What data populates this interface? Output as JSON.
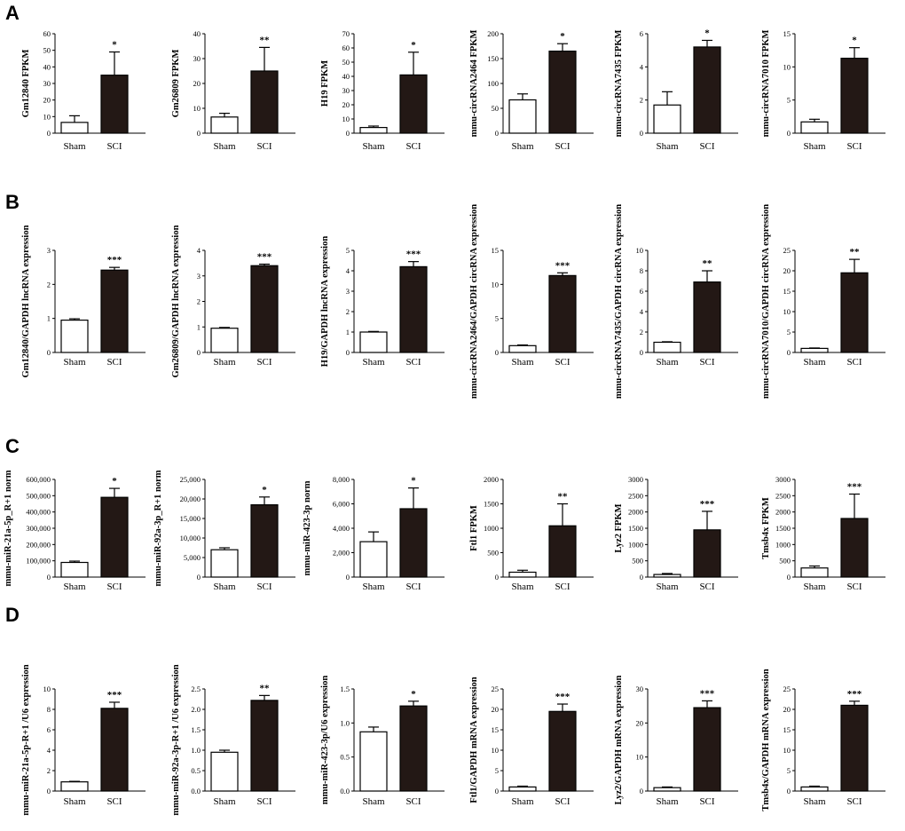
{
  "panels": [
    {
      "letter": "A",
      "charts": [
        {
          "type": "bar",
          "ylabel": "Gm12840 FPKM",
          "categories": [
            "Sham",
            "SCI"
          ],
          "values": [
            6.5,
            35
          ],
          "errors": [
            4,
            14
          ],
          "ylim": [
            0,
            60
          ],
          "yticks": [
            "0",
            "10",
            "20",
            "30",
            "40",
            "50",
            "60"
          ],
          "significance": "*"
        },
        {
          "type": "bar",
          "ylabel": "Gm26809 FPKM",
          "categories": [
            "Sham",
            "SCI"
          ],
          "values": [
            6.5,
            25
          ],
          "errors": [
            1.5,
            9.5
          ],
          "ylim": [
            0,
            40
          ],
          "yticks": [
            "0",
            "10",
            "20",
            "30",
            "40"
          ],
          "significance": "**"
        },
        {
          "type": "bar",
          "ylabel": "H19 FPKM",
          "categories": [
            "Sham",
            "SCI"
          ],
          "values": [
            4,
            41
          ],
          "errors": [
            1,
            16
          ],
          "ylim": [
            0,
            70
          ],
          "yticks": [
            "0",
            "10",
            "20",
            "30",
            "40",
            "50",
            "60",
            "70"
          ],
          "significance": "*"
        },
        {
          "type": "bar",
          "ylabel": "mmu-circRNA2464 FPKM",
          "categories": [
            "Sham",
            "SCI"
          ],
          "values": [
            67,
            165
          ],
          "errors": [
            12,
            15
          ],
          "ylim": [
            0,
            200
          ],
          "yticks": [
            "0",
            "50",
            "100",
            "150",
            "200"
          ],
          "significance": "*"
        },
        {
          "type": "bar",
          "ylabel": "mmu-circRNA7435 FPKM",
          "categories": [
            "Sham",
            "SCI"
          ],
          "values": [
            1.7,
            5.2
          ],
          "errors": [
            0.8,
            0.4
          ],
          "ylim": [
            0,
            6
          ],
          "yticks": [
            "0",
            "2",
            "4",
            "6"
          ],
          "significance": "*"
        },
        {
          "type": "bar",
          "ylabel": "mmu-circRNA7010 FPKM",
          "categories": [
            "Sham",
            "SCI"
          ],
          "values": [
            1.7,
            11.3
          ],
          "errors": [
            0.4,
            1.6
          ],
          "ylim": [
            0,
            15
          ],
          "yticks": [
            "0",
            "5",
            "10",
            "15"
          ],
          "significance": "*"
        }
      ]
    },
    {
      "letter": "B",
      "charts": [
        {
          "type": "bar",
          "ylabel": "Gm12840/GAPDH lncRNA expression",
          "categories": [
            "Sham",
            "SCI"
          ],
          "values": [
            0.95,
            2.42
          ],
          "errors": [
            0.04,
            0.08
          ],
          "ylim": [
            0,
            3
          ],
          "yticks": [
            "0",
            "1",
            "2",
            "3"
          ],
          "significance": "***"
        },
        {
          "type": "bar",
          "ylabel": "Gm26809/GAPDH lncRNA expression",
          "categories": [
            "Sham",
            "SCI"
          ],
          "values": [
            0.95,
            3.4
          ],
          "errors": [
            0.03,
            0.06
          ],
          "ylim": [
            0,
            4
          ],
          "yticks": [
            "0",
            "1",
            "2",
            "3",
            "4"
          ],
          "significance": "***"
        },
        {
          "type": "bar",
          "ylabel": "H19/GAPDH lncRNA expression",
          "categories": [
            "Sham",
            "SCI"
          ],
          "values": [
            1,
            4.2
          ],
          "errors": [
            0.03,
            0.25
          ],
          "ylim": [
            0,
            5
          ],
          "yticks": [
            "0",
            "1",
            "2",
            "3",
            "4",
            "5"
          ],
          "significance": "***"
        },
        {
          "type": "bar",
          "ylabel": "mmu-circRNA2464/GAPDH circRNA expression",
          "categories": [
            "Sham",
            "SCI"
          ],
          "values": [
            1,
            11.3
          ],
          "errors": [
            0.1,
            0.4
          ],
          "ylim": [
            0,
            15
          ],
          "yticks": [
            "0",
            "5",
            "10",
            "15"
          ],
          "significance": "***"
        },
        {
          "type": "bar",
          "ylabel": "mmu-circRNA7435/GAPDH circRNA expression",
          "categories": [
            "Sham",
            "SCI"
          ],
          "values": [
            1,
            6.9
          ],
          "errors": [
            0.05,
            1.1
          ],
          "ylim": [
            0,
            10
          ],
          "yticks": [
            "0",
            "2",
            "4",
            "6",
            "8",
            "10"
          ],
          "significance": "**"
        },
        {
          "type": "bar",
          "ylabel": "mmu-circRNA7010/GAPDH circRNA expression",
          "categories": [
            "Sham",
            "SCI"
          ],
          "values": [
            1,
            19.5
          ],
          "errors": [
            0.1,
            3.3
          ],
          "ylim": [
            0,
            25
          ],
          "yticks": [
            "0",
            "5",
            "10",
            "15",
            "20",
            "25"
          ],
          "significance": "**"
        }
      ]
    },
    {
      "letter": "C",
      "charts": [
        {
          "type": "bar",
          "ylabel": "mmu-miR-21a-5p_R+1 norm",
          "categories": [
            "Sham",
            "SCI"
          ],
          "values": [
            90000,
            490000
          ],
          "errors": [
            8000,
            55000
          ],
          "ylim": [
            0,
            600000
          ],
          "yticks": [
            "0",
            "100,000",
            "200,000",
            "300,000",
            "400,000",
            "500,000",
            "600,000"
          ],
          "significance": "*"
        },
        {
          "type": "bar",
          "ylabel": "mmu-miR-92a-3p_R+1 norm",
          "categories": [
            "Sham",
            "SCI"
          ],
          "values": [
            7000,
            18500
          ],
          "errors": [
            500,
            2000
          ],
          "ylim": [
            0,
            25000
          ],
          "yticks": [
            "0",
            "5,000",
            "10,000",
            "15,000",
            "20,000",
            "25,000"
          ],
          "significance": "*"
        },
        {
          "type": "bar",
          "ylabel": "mmu-miR-423-3p norm",
          "categories": [
            "Sham",
            "SCI"
          ],
          "values": [
            2900,
            5600
          ],
          "errors": [
            800,
            1700
          ],
          "ylim": [
            0,
            8000
          ],
          "yticks": [
            "0",
            "2,000",
            "4,000",
            "6,000",
            "8,000"
          ],
          "significance": "*"
        },
        {
          "type": "bar",
          "ylabel": "Ftl1 FPKM",
          "categories": [
            "Sham",
            "SCI"
          ],
          "values": [
            100,
            1050
          ],
          "errors": [
            40,
            450
          ],
          "ylim": [
            0,
            2000
          ],
          "yticks": [
            "0",
            "500",
            "1000",
            "1500",
            "2000"
          ],
          "significance": "**"
        },
        {
          "type": "bar",
          "ylabel": "Lyz2 FPKM",
          "categories": [
            "Sham",
            "SCI"
          ],
          "values": [
            80,
            1450
          ],
          "errors": [
            30,
            570
          ],
          "ylim": [
            0,
            3000
          ],
          "yticks": [
            "0",
            "500",
            "1000",
            "1500",
            "2000",
            "2500",
            "3000"
          ],
          "significance": "***"
        },
        {
          "type": "bar",
          "ylabel": "Tmsb4x FPKM",
          "categories": [
            "Sham",
            "SCI"
          ],
          "values": [
            280,
            1800
          ],
          "errors": [
            60,
            750
          ],
          "ylim": [
            0,
            3000
          ],
          "yticks": [
            "0",
            "500",
            "1000",
            "1500",
            "2000",
            "2500",
            "3000"
          ],
          "significance": "***"
        }
      ]
    },
    {
      "letter": "D",
      "charts": [
        {
          "type": "bar",
          "ylabel": "mmu-miR-21a-5p-R+1 /U6 expression",
          "categories": [
            "Sham",
            "SCI"
          ],
          "values": [
            0.9,
            8.1
          ],
          "errors": [
            0.05,
            0.6
          ],
          "ylim": [
            0,
            10
          ],
          "yticks": [
            "0",
            "2",
            "4",
            "6",
            "8",
            "10"
          ],
          "significance": "***"
        },
        {
          "type": "bar",
          "ylabel": "mmu-miR-92a-3p-R+1 /U6 expression",
          "categories": [
            "Sham",
            "SCI"
          ],
          "values": [
            0.95,
            2.22
          ],
          "errors": [
            0.05,
            0.12
          ],
          "ylim": [
            0,
            2.5
          ],
          "yticks": [
            "0.0",
            "0.5",
            "1.0",
            "1.5",
            "2.0",
            "2.5"
          ],
          "significance": "**"
        },
        {
          "type": "bar",
          "ylabel": "mmu-miR-423-3p/U6 expression",
          "categories": [
            "Sham",
            "SCI"
          ],
          "values": [
            0.87,
            1.25
          ],
          "errors": [
            0.07,
            0.07
          ],
          "ylim": [
            0,
            1.5
          ],
          "yticks": [
            "0.0",
            "0.5",
            "1.0",
            "1.5"
          ],
          "significance": "*"
        },
        {
          "type": "bar",
          "ylabel": "Ftl1/GAPDH mRNA expression",
          "categories": [
            "Sham",
            "SCI"
          ],
          "values": [
            1,
            19.5
          ],
          "errors": [
            0.2,
            1.8
          ],
          "ylim": [
            0,
            25
          ],
          "yticks": [
            "0",
            "5",
            "10",
            "15",
            "20",
            "25"
          ],
          "significance": "***"
        },
        {
          "type": "bar",
          "ylabel": "Lyz2/GAPDH mRNA expression",
          "categories": [
            "Sham",
            "SCI"
          ],
          "values": [
            1,
            24.5
          ],
          "errors": [
            0.2,
            2
          ],
          "ylim": [
            0,
            30
          ],
          "yticks": [
            "0",
            "10",
            "20",
            "30"
          ],
          "significance": "***"
        },
        {
          "type": "bar",
          "ylabel": "Tmsb4x/GAPDH mRNA expression",
          "categories": [
            "Sham",
            "SCI"
          ],
          "values": [
            1,
            21
          ],
          "errors": [
            0.2,
            1
          ],
          "ylim": [
            0,
            25
          ],
          "yticks": [
            "0",
            "5",
            "10",
            "15",
            "20",
            "25"
          ],
          "significance": "***"
        }
      ]
    }
  ]
}
